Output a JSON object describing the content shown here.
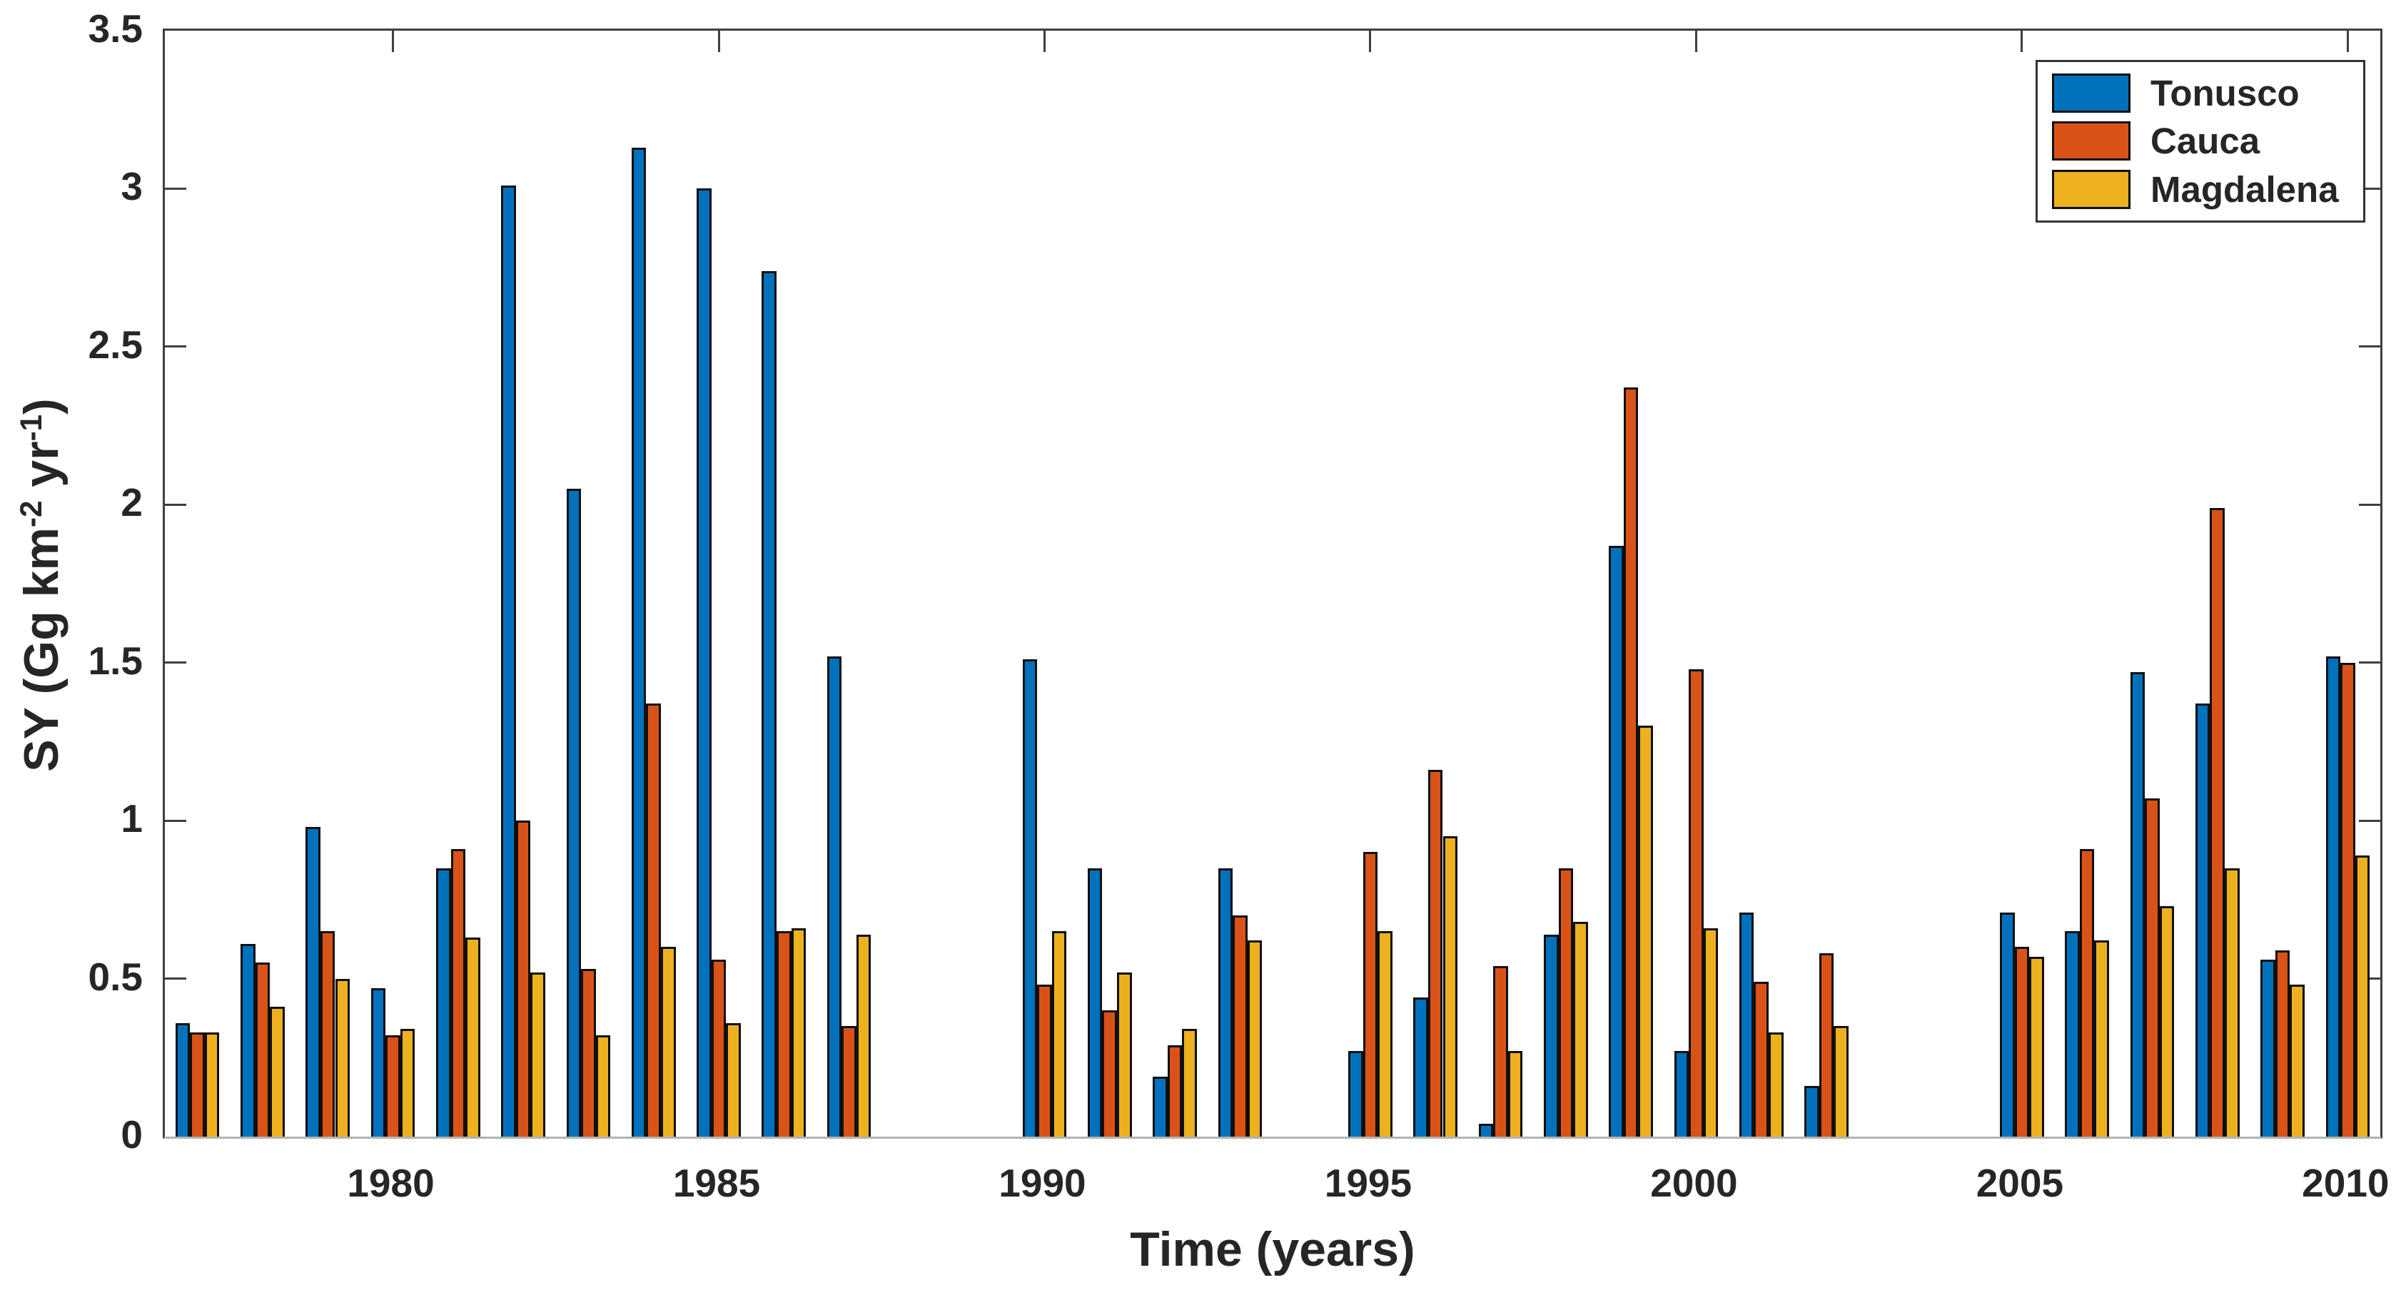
{
  "chart_data": {
    "type": "bar",
    "title": "",
    "xlabel": "Time (years)",
    "ylabel_parts": [
      {
        "text": "SY (Gg km",
        "sup": false
      },
      {
        "text": "-2",
        "sup": true
      },
      {
        "text": " yr",
        "sup": false
      },
      {
        "text": "-1",
        "sup": true
      },
      {
        "text": ")",
        "sup": false
      }
    ],
    "ylim": [
      0,
      3.5
    ],
    "xlim": [
      1976.5,
      2010.5
    ],
    "yticks": [
      0,
      0.5,
      1,
      1.5,
      2,
      2.5,
      3,
      3.5
    ],
    "ytick_labels": [
      "0",
      "0.5",
      "1",
      "1.5",
      "2",
      "2.5",
      "3",
      "3.5"
    ],
    "xticks": [
      1980,
      1985,
      1990,
      1995,
      2000,
      2005,
      2010
    ],
    "xtick_labels": [
      "1980",
      "1985",
      "1990",
      "1995",
      "2000",
      "2005",
      "2010"
    ],
    "grid": false,
    "legend_position": "top-right",
    "bar_group_years": [
      1977,
      1978,
      1979,
      1980,
      1981,
      1982,
      1983,
      1984,
      1985,
      1986,
      1987,
      1988,
      1989,
      1990,
      1991,
      1992,
      1993,
      1994,
      1995,
      1996,
      1997,
      1998,
      1999,
      2000,
      2001,
      2002,
      2003,
      2004,
      2005,
      2006,
      2007,
      2008,
      2009,
      2010
    ],
    "series": [
      {
        "name": "Tonusco",
        "color": "#0072BD",
        "values": [
          0.36,
          0.61,
          0.98,
          0.47,
          0.85,
          3.01,
          2.05,
          3.13,
          3.0,
          2.74,
          1.52,
          null,
          null,
          1.51,
          0.85,
          0.19,
          0.85,
          null,
          0.27,
          0.44,
          0.04,
          0.64,
          1.87,
          0.27,
          0.71,
          0.16,
          null,
          null,
          0.71,
          0.65,
          1.47,
          1.37,
          0.56,
          1.52
        ]
      },
      {
        "name": "Cauca",
        "color": "#D95319",
        "values": [
          0.33,
          0.55,
          0.65,
          0.32,
          0.91,
          1.0,
          0.53,
          1.37,
          0.56,
          0.65,
          0.35,
          null,
          null,
          0.48,
          0.4,
          0.29,
          0.7,
          null,
          0.9,
          1.16,
          0.54,
          0.85,
          2.37,
          1.48,
          0.49,
          0.58,
          null,
          null,
          0.6,
          0.91,
          1.07,
          1.99,
          0.59,
          1.5
        ]
      },
      {
        "name": "Magdalena",
        "color": "#EDB120",
        "values": [
          0.33,
          0.41,
          0.5,
          0.34,
          0.63,
          0.52,
          0.32,
          0.6,
          0.36,
          0.66,
          0.64,
          null,
          null,
          0.65,
          0.52,
          0.34,
          0.62,
          null,
          0.65,
          0.95,
          0.27,
          0.68,
          1.3,
          0.66,
          0.33,
          0.35,
          null,
          null,
          0.57,
          0.62,
          0.73,
          0.85,
          0.48,
          0.89
        ]
      }
    ]
  }
}
